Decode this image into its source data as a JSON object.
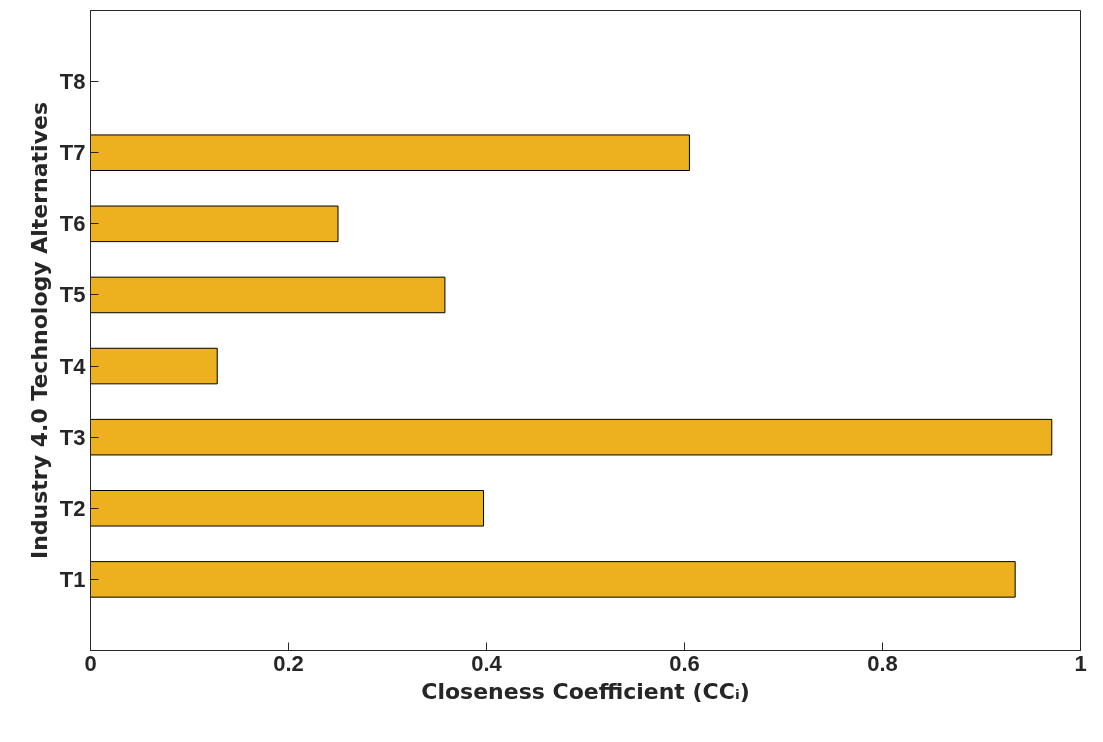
{
  "chart_data": {
    "type": "bar",
    "orientation": "horizontal",
    "xlabel": "Closeness Coefficient (CCᵢ)",
    "ylabel": "Industry 4.0 Technology Alternatives",
    "categories": [
      "T8",
      "T7",
      "T6",
      "T5",
      "T4",
      "T3",
      "T2",
      "T1"
    ],
    "values": [
      null,
      0.605,
      0.25,
      0.358,
      0.128,
      0.971,
      0.397,
      0.934
    ],
    "color": "#edb120",
    "xlim": [
      0,
      1
    ],
    "xticks": [
      0,
      0.2,
      0.4,
      0.6,
      0.8,
      1
    ],
    "grid": false
  }
}
